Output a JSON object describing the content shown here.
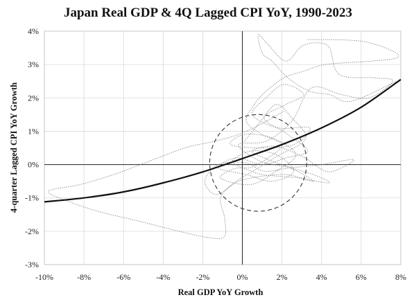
{
  "chart_data": {
    "type": "scatter",
    "title": "Japan Real GDP & 4Q Lagged CPI YoY, 1990-2023",
    "xlabel": "Real GDP YoY Growth",
    "ylabel": "4-quarter Lagged CPI YoY Growth",
    "xlim": [
      -10,
      8
    ],
    "ylim": [
      -3,
      4
    ],
    "x_ticks": [
      -10,
      -8,
      -6,
      -4,
      -2,
      0,
      2,
      4,
      6,
      8
    ],
    "y_ticks": [
      -3,
      -2,
      -1,
      0,
      1,
      2,
      3,
      4
    ],
    "x_tick_labels": [
      "-10%",
      "-8%",
      "-6%",
      "-4%",
      "-2%",
      "0%",
      "2%",
      "4%",
      "6%",
      "8%"
    ],
    "y_tick_labels": [
      "-3%",
      "-2%",
      "-1%",
      "0%",
      "1%",
      "2%",
      "3%",
      "4%"
    ],
    "grid": true,
    "series": [
      {
        "style": "dotted connected path",
        "points": [
          [
            3.3,
            3.75
          ],
          [
            6.0,
            3.7
          ],
          [
            7.6,
            3.4
          ],
          [
            7.8,
            3.2
          ],
          [
            6.5,
            3.1
          ],
          [
            4.2,
            3.0
          ],
          [
            3.1,
            2.8
          ],
          [
            2.1,
            2.6
          ],
          [
            1.2,
            2.2
          ],
          [
            0.6,
            1.8
          ],
          [
            0.2,
            1.3
          ],
          [
            1.0,
            0.9
          ],
          [
            2.0,
            0.6
          ],
          [
            1.3,
            0.2
          ],
          [
            0.3,
            -0.1
          ],
          [
            -0.5,
            0.1
          ],
          [
            0.4,
            0.4
          ],
          [
            1.7,
            0.3
          ],
          [
            2.6,
            -0.2
          ],
          [
            1.5,
            -0.5
          ],
          [
            0.2,
            -0.3
          ],
          [
            -1.2,
            -0.1
          ],
          [
            -0.3,
            0.2
          ],
          [
            1.0,
            0.0
          ],
          [
            2.2,
            0.2
          ],
          [
            3.3,
            0.4
          ],
          [
            2.3,
            0.9
          ],
          [
            1.1,
            1.4
          ],
          [
            2.2,
            1.8
          ],
          [
            3.1,
            2.1
          ],
          [
            2.1,
            2.4
          ],
          [
            1.2,
            2.0
          ],
          [
            0.5,
            1.5
          ],
          [
            1.8,
            1.1
          ],
          [
            3.4,
            1.1
          ],
          [
            2.6,
            0.6
          ],
          [
            0.9,
            0.5
          ],
          [
            -0.6,
            0.6
          ],
          [
            0.1,
            0.9
          ],
          [
            1.5,
            0.8
          ],
          [
            2.7,
            0.3
          ],
          [
            1.7,
            -0.2
          ],
          [
            0.4,
            -0.6
          ],
          [
            -1.1,
            -0.4
          ],
          [
            -0.2,
            -0.1
          ],
          [
            1.0,
            -0.3
          ],
          [
            2.8,
            -0.4
          ],
          [
            3.6,
            -0.5
          ],
          [
            2.4,
            -0.1
          ],
          [
            0.9,
            0.1
          ],
          [
            -0.2,
            0.6
          ],
          [
            1.2,
            0.7
          ],
          [
            2.5,
            1.3
          ],
          [
            3.5,
            2.3
          ],
          [
            5.0,
            2.1
          ],
          [
            6.4,
            2.0
          ],
          [
            7.6,
            2.5
          ],
          [
            6.7,
            2.6
          ],
          [
            4.9,
            2.7
          ],
          [
            4.4,
            3.5
          ],
          [
            3.8,
            3.65
          ],
          [
            3.0,
            3.55
          ],
          [
            2.2,
            3.1
          ],
          [
            1.3,
            3.6
          ],
          [
            0.8,
            3.9
          ],
          [
            1.0,
            3.35
          ],
          [
            1.5,
            3.1
          ],
          [
            2.3,
            2.6
          ],
          [
            3.4,
            2.2
          ],
          [
            4.4,
            2.1
          ],
          [
            5.5,
            1.9
          ],
          [
            7.8,
            2.5
          ]
        ]
      },
      {
        "style": "dotted connected path",
        "points": [
          [
            2.1,
            1.6
          ],
          [
            0.9,
            1.2
          ],
          [
            -0.2,
            0.9
          ],
          [
            -1.4,
            0.7
          ],
          [
            -2.9,
            0.5
          ],
          [
            -4.7,
            0.1
          ],
          [
            -6.5,
            -0.3
          ],
          [
            -8.2,
            -0.6
          ],
          [
            -9.8,
            -0.8
          ],
          [
            -8.8,
            -1.1
          ],
          [
            -7.3,
            -1.4
          ],
          [
            -5.2,
            -1.7
          ],
          [
            -3.2,
            -2.0
          ],
          [
            -1.6,
            -2.2
          ],
          [
            -0.9,
            -2.15
          ],
          [
            -0.9,
            -1.6
          ],
          [
            -1.1,
            -1.0
          ],
          [
            -0.5,
            -0.6
          ],
          [
            0.1,
            -0.45
          ],
          [
            1.0,
            -0.35
          ],
          [
            2.2,
            -0.3
          ],
          [
            3.3,
            -0.45
          ],
          [
            4.4,
            -0.55
          ],
          [
            3.8,
            -0.35
          ],
          [
            2.5,
            -0.1
          ],
          [
            1.3,
            0.15
          ],
          [
            0.5,
            0.4
          ],
          [
            1.6,
            0.55
          ],
          [
            3.0,
            0.25
          ],
          [
            4.2,
            -0.2
          ],
          [
            5.0,
            -0.1
          ],
          [
            5.6,
            0.15
          ],
          [
            4.0,
            0.0
          ],
          [
            2.4,
            -0.1
          ],
          [
            1.1,
            -0.2
          ],
          [
            0.2,
            0.05
          ],
          [
            -1.2,
            0.0
          ],
          [
            -1.9,
            -0.5
          ],
          [
            -1.3,
            -0.9
          ],
          [
            -0.3,
            -0.5
          ],
          [
            0.8,
            -0.1
          ],
          [
            1.9,
            0.3
          ],
          [
            2.9,
            0.6
          ],
          [
            3.2,
            0.9
          ],
          [
            2.5,
            1.4
          ],
          [
            1.7,
            1.8
          ],
          [
            0.8,
            1.2
          ],
          [
            0.1,
            0.7
          ]
        ]
      }
    ],
    "trend_line": {
      "style": "solid bold curve",
      "points": [
        [
          -10,
          -1.12
        ],
        [
          -8,
          -1.0
        ],
        [
          -6,
          -0.82
        ],
        [
          -4,
          -0.55
        ],
        [
          -2,
          -0.22
        ],
        [
          0,
          0.18
        ],
        [
          2,
          0.6
        ],
        [
          4,
          1.1
        ],
        [
          6,
          1.72
        ],
        [
          8,
          2.55
        ]
      ]
    },
    "circle_annotation": {
      "style": "dashed circle",
      "center": [
        0.8,
        0.05
      ],
      "radius_x": 2.45,
      "radius_y": 1.45
    }
  }
}
